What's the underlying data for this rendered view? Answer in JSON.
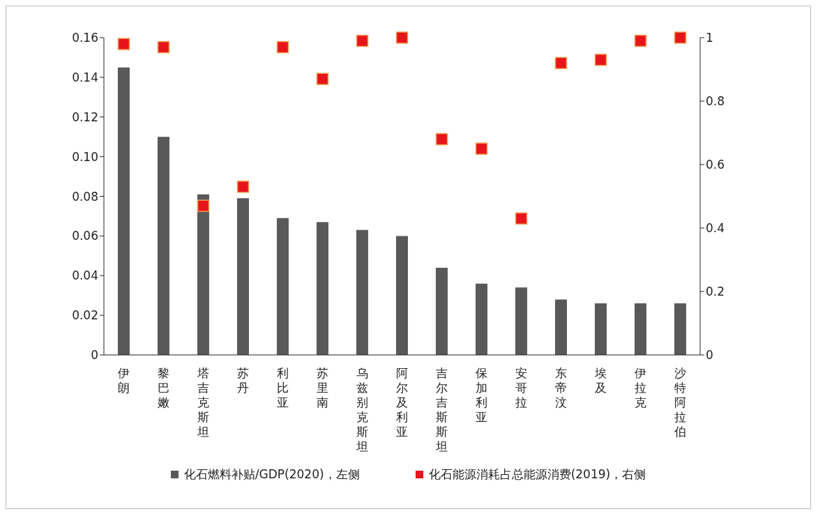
{
  "chart_data": {
    "type": "bar",
    "categories": [
      "伊朗",
      "黎巴嫩",
      "塔吉克斯坦",
      "苏丹",
      "利比亚",
      "苏里南",
      "乌兹别克斯坦",
      "阿尔及利亚",
      "吉尔吉斯斯坦",
      "保加利亚",
      "安哥拉",
      "东帝汶",
      "埃及",
      "伊拉克",
      "沙特阿拉伯"
    ],
    "series": [
      {
        "name": "化石燃料补贴/GDP(2020)，左侧",
        "color": "#595959",
        "values": [
          0.145,
          0.11,
          0.081,
          0.079,
          0.069,
          0.067,
          0.063,
          0.06,
          0.044,
          0.036,
          0.034,
          0.028,
          0.026,
          0.026,
          0.026
        ]
      },
      {
        "type": "scatter",
        "axis": "y2",
        "name": "化石能源消耗占总能源消费(2019)，右侧",
        "color": "#e8141c",
        "values": [
          0.98,
          0.97,
          0.47,
          0.53,
          0.97,
          0.87,
          0.99,
          1.0,
          0.68,
          0.65,
          0.43,
          0.92,
          0.93,
          0.99,
          1.0
        ]
      }
    ],
    "ylim": [
      0,
      0.16
    ],
    "yticks": [
      0,
      0.02,
      0.04,
      0.06,
      0.08,
      {
        "value": 0.1,
        "label": "0.10"
      },
      0.12,
      0.14,
      0.16
    ],
    "y2lim": [
      0,
      1
    ],
    "y2ticks": [
      0,
      0.2,
      0.4,
      0.6,
      0.8,
      1
    ],
    "marker": "square",
    "legend": "bottom"
  }
}
